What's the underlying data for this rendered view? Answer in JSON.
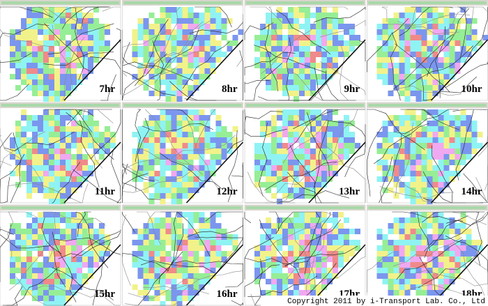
{
  "panels": [
    {
      "label": "7hr"
    },
    {
      "label": "8hr"
    },
    {
      "label": "9hr"
    },
    {
      "label": "10hr"
    },
    {
      "label": "11hr"
    },
    {
      "label": "12hr"
    },
    {
      "label": "13hr"
    },
    {
      "label": "14hr"
    },
    {
      "label": "15hr"
    },
    {
      "label": "16hr"
    },
    {
      "label": "17hr"
    },
    {
      "label": "18hr"
    }
  ],
  "copyright": "Copyright 2011 by i-Transport Lab. Co., Ltd"
}
